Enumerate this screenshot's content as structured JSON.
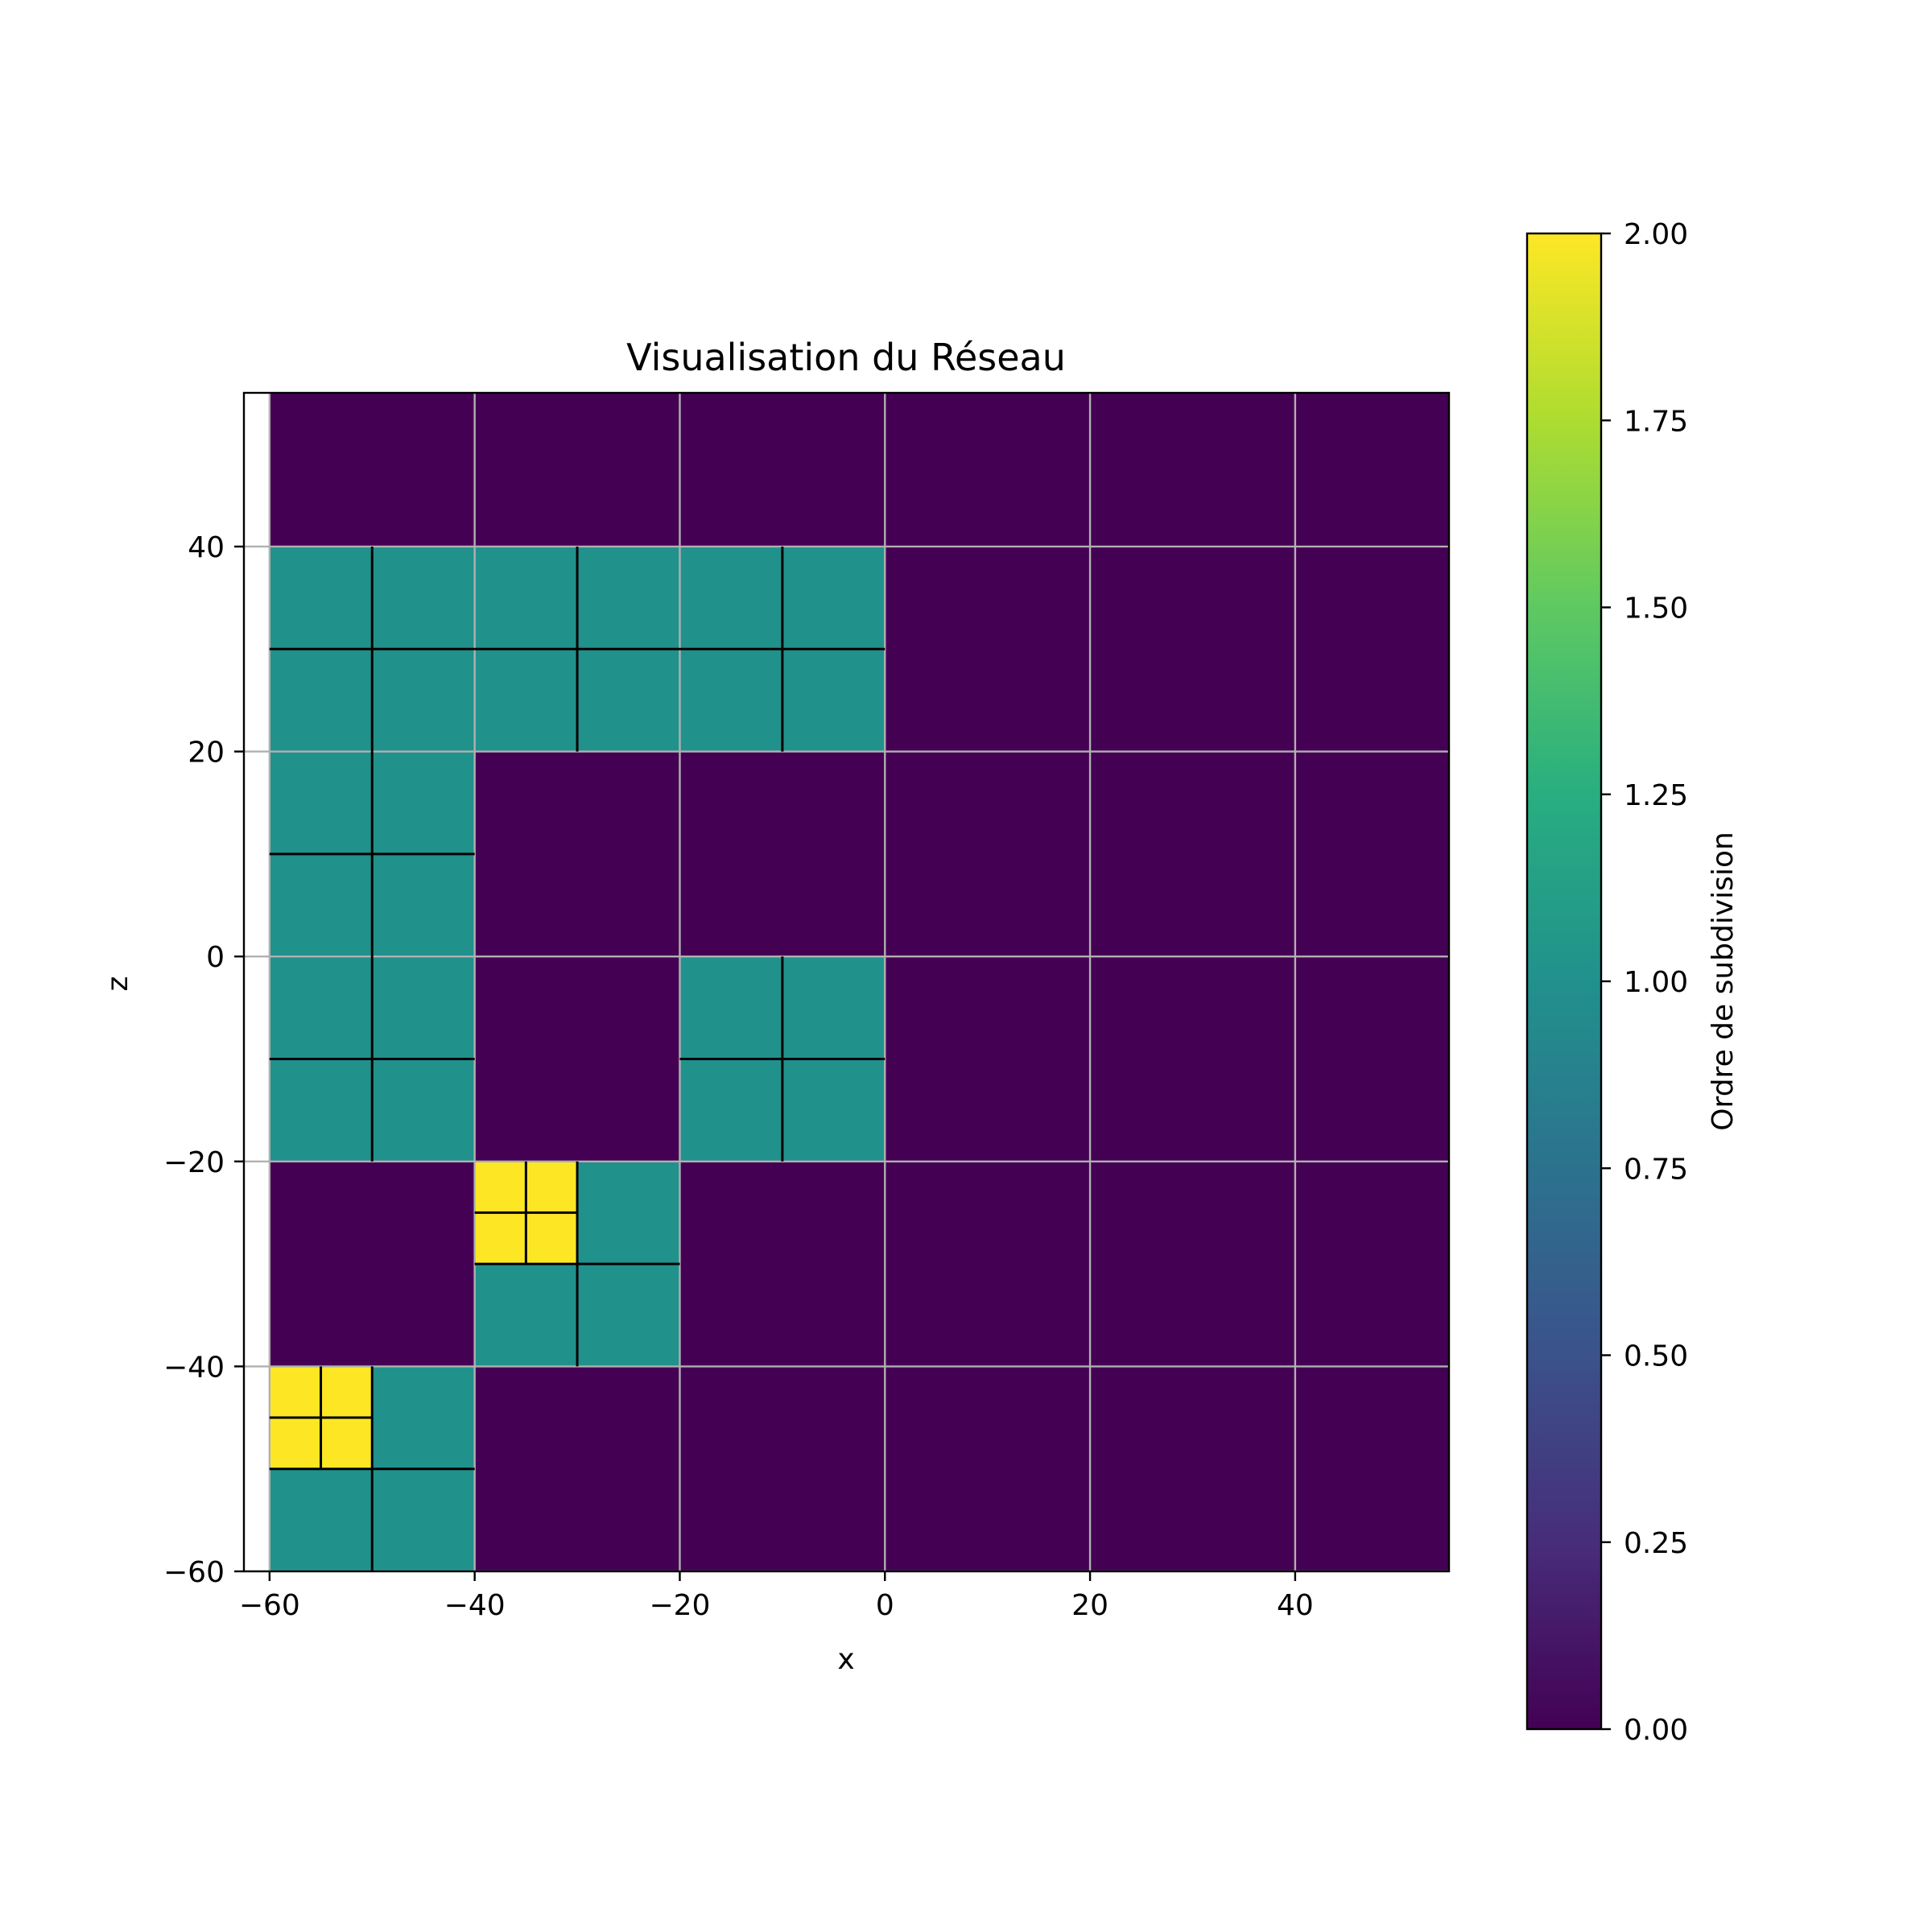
{
  "chart_data": {
    "type": "heatmap",
    "title": "Visualisation du Réseau",
    "xlabel": "x",
    "ylabel": "z",
    "xlim": [
      -62.5,
      55
    ],
    "ylim": [
      -60,
      55
    ],
    "x_ticks": [
      -60,
      -40,
      -20,
      0,
      20,
      40
    ],
    "y_ticks": [
      -60,
      -40,
      -20,
      0,
      20,
      40
    ],
    "x_tick_labels": [
      "−60",
      "−40",
      "−20",
      "0",
      "20",
      "40"
    ],
    "y_tick_labels": [
      "−60",
      "−40",
      "−20",
      "0",
      "20",
      "40"
    ],
    "grid": true,
    "cell_size": 20,
    "colormap": "viridis",
    "colors": {
      "order_0": "#440154",
      "order_1": "#21918c",
      "order_2": "#fde725",
      "grid": "#b0b0b0",
      "subdivision_lines": "#000000"
    },
    "cells": [
      {
        "x": -60,
        "z": -60,
        "order": 1,
        "sub": [
          {
            "x": -60,
            "z": -50,
            "order": 2
          }
        ]
      },
      {
        "x": -40,
        "z": -40,
        "order": 1,
        "sub": [
          {
            "x": -40,
            "z": -30,
            "order": 2
          }
        ]
      },
      {
        "x": -60,
        "z": -20,
        "order": 1
      },
      {
        "x": -20,
        "z": -20,
        "order": 1
      },
      {
        "x": -60,
        "z": 0,
        "order": 1
      },
      {
        "x": -60,
        "z": 20,
        "order": 1
      },
      {
        "x": -40,
        "z": 20,
        "order": 1
      },
      {
        "x": -20,
        "z": 20,
        "order": 1
      }
    ],
    "colorbar": {
      "label": "Ordre de subdivision",
      "min": 0,
      "max": 2,
      "ticks": [
        "0.00",
        "0.25",
        "0.50",
        "0.75",
        "1.00",
        "1.25",
        "1.50",
        "1.75",
        "2.00"
      ]
    }
  }
}
